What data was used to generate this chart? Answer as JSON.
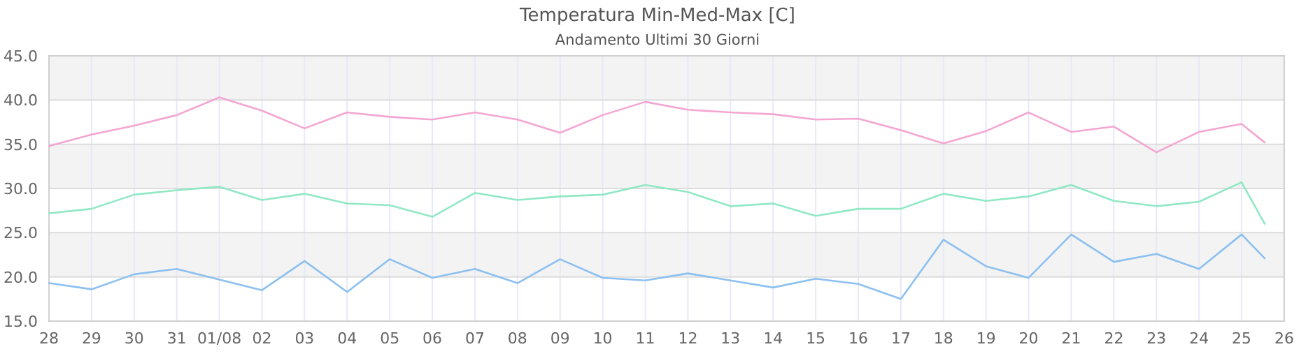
{
  "chart_data": {
    "type": "line",
    "title": "Temperatura Min-Med-Max [C]",
    "subtitle": "Andamento Ultimi 30 Giorni",
    "x": [
      "--07-28",
      "--07-29",
      "--07-30",
      "--07-31",
      "--08-01",
      "--08-02",
      "--08-03",
      "--08-04",
      "--08-05",
      "--08-06",
      "--08-07",
      "--08-08",
      "--08-09",
      "--08-10",
      "--08-11",
      "--08-12",
      "--08-13",
      "--08-14",
      "--08-15",
      "--08-16",
      "--08-17",
      "--08-18",
      "--08-19",
      "--08-20",
      "--08-21",
      "--08-22",
      "--08-23",
      "--08-24",
      "--08-25",
      "--08-25T13:00"
    ],
    "series": [
      {
        "color": "#f4a6d2",
        "values": [
          34.8,
          36.1,
          37.1,
          38.3,
          40.3,
          38.8,
          36.8,
          38.6,
          38.1,
          37.8,
          38.6,
          37.8,
          36.3,
          38.3,
          39.8,
          38.9,
          38.6,
          38.4,
          37.8,
          37.9,
          36.6,
          35.1,
          36.5,
          38.6,
          36.4,
          37.0,
          34.1,
          36.4,
          37.3,
          35.2
        ]
      },
      {
        "color": "#90e8c4",
        "values": [
          27.2,
          27.7,
          29.3,
          29.8,
          30.2,
          28.7,
          29.4,
          28.3,
          28.1,
          26.8,
          29.5,
          28.7,
          29.1,
          29.3,
          30.4,
          29.6,
          28.0,
          28.3,
          26.9,
          27.7,
          27.7,
          29.4,
          28.6,
          29.1,
          30.4,
          28.6,
          28.0,
          28.5,
          30.7,
          26.0
        ]
      },
      {
        "color": "#8cc0f0",
        "values": [
          19.3,
          18.6,
          20.3,
          20.9,
          19.7,
          18.5,
          21.8,
          18.3,
          22.0,
          19.9,
          20.9,
          19.3,
          22.0,
          19.9,
          19.6,
          20.4,
          19.6,
          18.8,
          19.8,
          19.2,
          17.5,
          24.2,
          21.2,
          19.9,
          24.8,
          21.7,
          22.6,
          20.9,
          24.8,
          22.1
        ]
      }
    ],
    "xlim": [
      "--07-28",
      "--08-26"
    ],
    "xticks": [
      {
        "value": "--07-28",
        "label": "28"
      },
      {
        "value": "--07-29",
        "label": "29"
      },
      {
        "value": "--07-30",
        "label": "30"
      },
      {
        "value": "--07-31",
        "label": "31"
      },
      {
        "value": "--08-01",
        "label": "01/08"
      },
      {
        "value": "--08-02",
        "label": "02"
      },
      {
        "value": "--08-03",
        "label": "03"
      },
      {
        "value": "--08-04",
        "label": "04"
      },
      {
        "value": "--08-05",
        "label": "05"
      },
      {
        "value": "--08-06",
        "label": "06"
      },
      {
        "value": "--08-07",
        "label": "07"
      },
      {
        "value": "--08-08",
        "label": "08"
      },
      {
        "value": "--08-09",
        "label": "09"
      },
      {
        "value": "--08-10",
        "label": "10"
      },
      {
        "value": "--08-11",
        "label": "11"
      },
      {
        "value": "--08-12",
        "label": "12"
      },
      {
        "value": "--08-13",
        "label": "13"
      },
      {
        "value": "--08-14",
        "label": "14"
      },
      {
        "value": "--08-15",
        "label": "15"
      },
      {
        "value": "--08-16",
        "label": "16"
      },
      {
        "value": "--08-17",
        "label": "17"
      },
      {
        "value": "--08-18",
        "label": "18"
      },
      {
        "value": "--08-19",
        "label": "19"
      },
      {
        "value": "--08-20",
        "label": "20"
      },
      {
        "value": "--08-21",
        "label": "21"
      },
      {
        "value": "--08-22",
        "label": "22"
      },
      {
        "value": "--08-23",
        "label": "23"
      },
      {
        "value": "--08-24",
        "label": "24"
      },
      {
        "value": "--08-25",
        "label": "25"
      },
      {
        "value": "--08-26",
        "label": "26"
      }
    ],
    "ylim": [
      15,
      45
    ],
    "yticks": [
      {
        "value": 15,
        "label": "15.0"
      },
      {
        "value": 20,
        "label": "20.0"
      },
      {
        "value": 25,
        "label": "25.0"
      },
      {
        "value": 30,
        "label": "30.0"
      },
      {
        "value": 35,
        "label": "35.0"
      },
      {
        "value": 40,
        "label": "40.0"
      },
      {
        "value": 45,
        "label": "45.0"
      }
    ],
    "bands": [
      {
        "axis": "y",
        "from": 20,
        "to": 25,
        "color": "#f3f3f3"
      },
      {
        "axis": "y",
        "from": 30,
        "to": 35,
        "color": "#f3f3f3"
      },
      {
        "axis": "y",
        "from": 40,
        "to": 45,
        "color": "#f3f3f3"
      }
    ],
    "grid": true,
    "marker": "none",
    "line_style": "solid"
  }
}
